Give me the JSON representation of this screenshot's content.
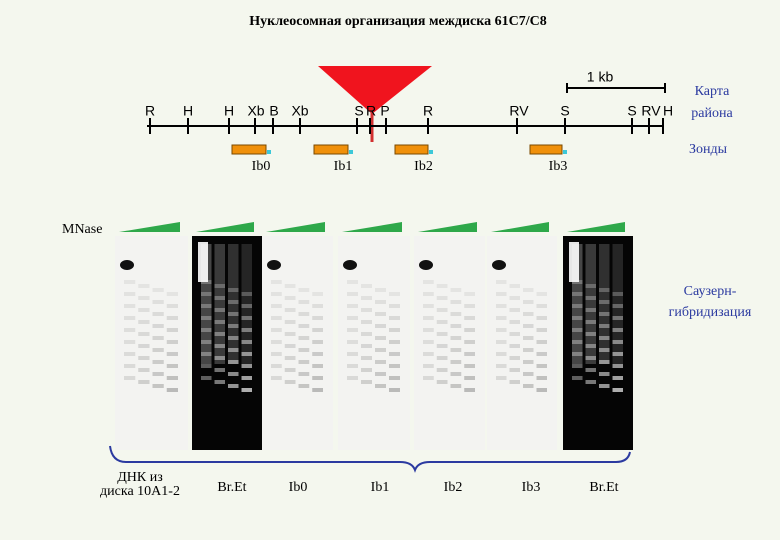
{
  "title": "Нуклеосомная организация междиска 61С7/С8",
  "map": {
    "scale": "1 kb",
    "label": [
      "Карта",
      "района"
    ],
    "sites": [
      "R",
      "H",
      "H",
      "Xb",
      "B",
      "Xb",
      "S",
      "R",
      "P",
      "R",
      "RV",
      "S",
      "S",
      "RV",
      "H"
    ]
  },
  "probes": {
    "label": "Зонды",
    "names": [
      "Ib0",
      "Ib1",
      "Ib2",
      "Ib3"
    ]
  },
  "gel": {
    "enzyme": "MNase",
    "method": [
      "Саузерн-",
      "гибридизация"
    ],
    "lanes": [
      [
        "ДНК из",
        "диска 10А1-2"
      ],
      "Br.Et",
      "Ib0",
      "Ib1",
      "Ib2",
      "Ib3",
      "Br.Et"
    ]
  }
}
